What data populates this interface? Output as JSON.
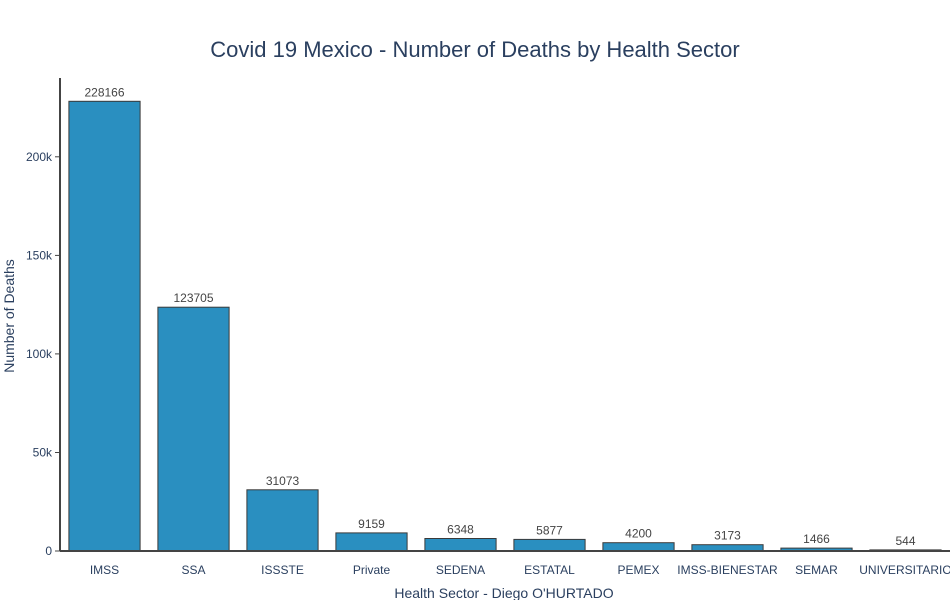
{
  "chart_data": {
    "type": "bar",
    "title": "Covid 19 Mexico - Number of Deaths by Health Sector",
    "xlabel": "Health Sector - Diego O'HURTADO",
    "ylabel": "Number of Deaths",
    "categories": [
      "IMSS",
      "SSA",
      "ISSSTE",
      "Private",
      "SEDENA",
      "ESTATAL",
      "PEMEX",
      "IMSS-BIENESTAR",
      "SEMAR",
      "UNIVERSITARIO"
    ],
    "values": [
      228166,
      123705,
      31073,
      9159,
      6348,
      5877,
      4200,
      3173,
      1466,
      544
    ],
    "data_labels": [
      "228166",
      "123705",
      "31073",
      "9159",
      "6348",
      "5877",
      "4200",
      "3173",
      "1466",
      "544"
    ],
    "y_ticks": [
      0,
      50000,
      100000,
      150000,
      200000
    ],
    "y_tick_labels": [
      "0",
      "50k",
      "100k",
      "150k",
      "200k"
    ],
    "ylim": [
      0,
      240000
    ],
    "grid": false,
    "legend": "none",
    "bar_color": "#2a8fc0",
    "bar_outline_color": "#3a3a3a"
  }
}
